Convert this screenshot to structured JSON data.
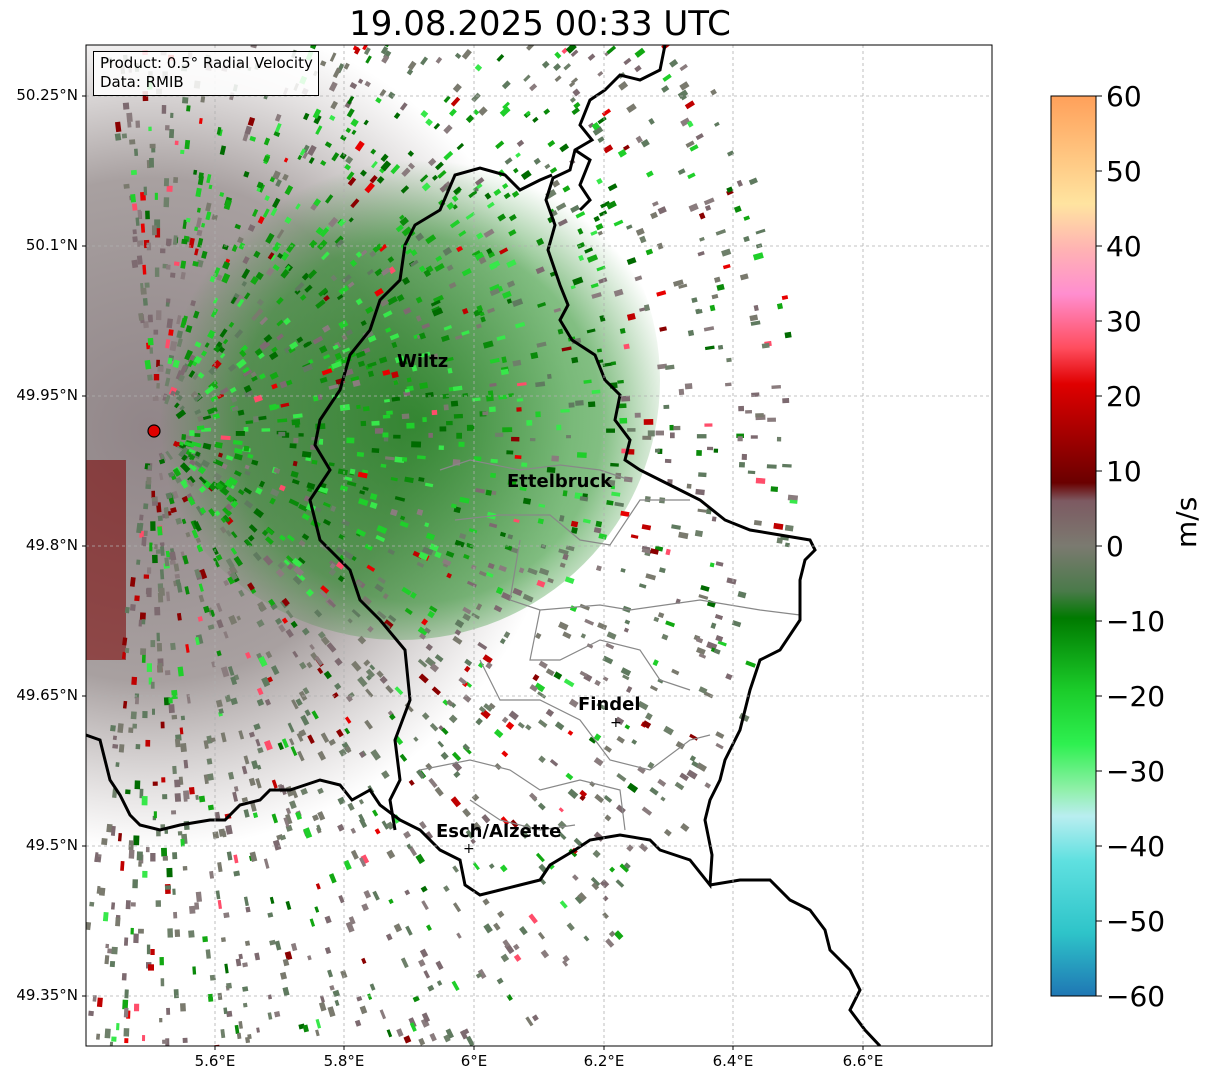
{
  "title": "19.08.2025 00:33 UTC",
  "info_box": {
    "product": "Product: 0.5° Radial Velocity",
    "data": "Data: RMIB"
  },
  "lat_ticks": [
    "50.25°N",
    "50.1°N",
    "49.95°N",
    "49.8°N",
    "49.65°N",
    "49.5°N",
    "49.35°N"
  ],
  "lon_ticks": [
    "5.6°E",
    "5.8°E",
    "6°E",
    "6.2°E",
    "6.4°E",
    "6.6°E"
  ],
  "cities": [
    {
      "name": "Wiltz"
    },
    {
      "name": "Ettelbruck"
    },
    {
      "name": "Findel"
    },
    {
      "name": "Esch/Alzette"
    }
  ],
  "colorbar": {
    "label": "m/s",
    "ticks": [
      "60",
      "50",
      "40",
      "30",
      "20",
      "10",
      "0",
      "−10",
      "−20",
      "−30",
      "−40",
      "−50",
      "−60"
    ],
    "range": [
      -60,
      60
    ]
  },
  "colors": {
    "inbound_green": "#0a7a0a",
    "outbound_red": "#cc0000",
    "near_zero": "#7a7a6e",
    "border": "#000000",
    "canton_border": "#888888",
    "radar_marker": "#e00000"
  }
}
